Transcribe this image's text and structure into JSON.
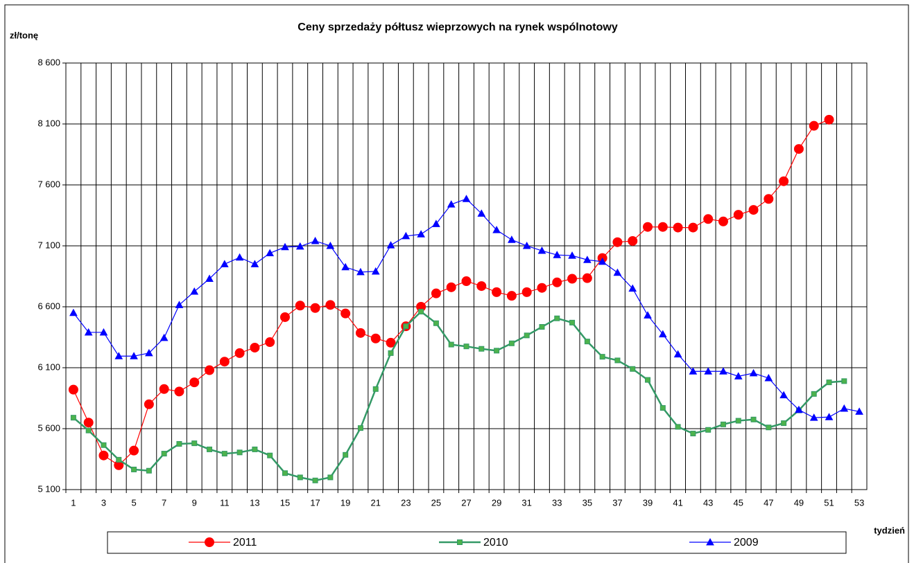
{
  "chart_data": {
    "type": "line",
    "title": "Ceny sprzedaży półtusz wieprzowych na rynek wspólnotowy",
    "y_label": "zł/tonę",
    "x_label": "tydzień",
    "categories": [
      1,
      null,
      3,
      null,
      5,
      null,
      7,
      null,
      9,
      null,
      11,
      null,
      13,
      null,
      15,
      null,
      17,
      null,
      19,
      null,
      21,
      null,
      23,
      null,
      25,
      null,
      27,
      null,
      29,
      null,
      31,
      null,
      33,
      null,
      35,
      null,
      37,
      null,
      39,
      null,
      41,
      null,
      43,
      null,
      45,
      null,
      47,
      null,
      49,
      null,
      51,
      null,
      53
    ],
    "ylim": [
      5100,
      8600
    ],
    "yticks": [
      {
        "value": 5100,
        "label": "5 100"
      },
      {
        "value": 5600,
        "label": "5 600"
      },
      {
        "value": 6100,
        "label": "6 100"
      },
      {
        "value": 6600,
        "label": "6 600"
      },
      {
        "value": 7100,
        "label": "7 100"
      },
      {
        "value": 7600,
        "label": "7 600"
      },
      {
        "value": 8100,
        "label": "8 100"
      },
      {
        "value": 8600,
        "label": "8 600"
      }
    ],
    "grid": true,
    "legend": "bottom",
    "series": [
      {
        "name": "2011",
        "color": "#ff0000",
        "marker": "circle",
        "values": [
          5920,
          5650,
          5380,
          5300,
          5420,
          5800,
          5925,
          5905,
          5980,
          6080,
          6150,
          6220,
          6265,
          6310,
          6515,
          6610,
          6590,
          6615,
          6545,
          6385,
          6340,
          6305,
          6440,
          6600,
          6710,
          6760,
          6810,
          6770,
          6720,
          6690,
          6720,
          6755,
          6800,
          6830,
          6835,
          7000,
          7130,
          7140,
          7255,
          7255,
          7250,
          7250,
          7320,
          7300,
          7355,
          7395,
          7485,
          7630,
          7895,
          8085,
          8135,
          null,
          null
        ]
      },
      {
        "name": "2010",
        "color": "#339966",
        "marker": "square",
        "values": [
          5690,
          5585,
          5465,
          5345,
          5265,
          5255,
          5395,
          5475,
          5480,
          5430,
          5395,
          5405,
          5430,
          5380,
          5235,
          5200,
          5175,
          5200,
          5385,
          5605,
          5925,
          6220,
          6440,
          6560,
          6465,
          6290,
          6275,
          6255,
          6240,
          6300,
          6365,
          6435,
          6505,
          6470,
          6315,
          6190,
          6160,
          6090,
          6000,
          5770,
          5615,
          5560,
          5590,
          5635,
          5665,
          5675,
          5610,
          5645,
          5750,
          5885,
          5980,
          5990,
          null
        ]
      },
      {
        "name": "2009",
        "color": "#0000ff",
        "marker": "triangle",
        "values": [
          6550,
          6390,
          6390,
          6195,
          6195,
          6220,
          6345,
          6615,
          6725,
          6830,
          6950,
          7005,
          6950,
          7040,
          7090,
          7095,
          7140,
          7100,
          6925,
          6885,
          6890,
          7105,
          7180,
          7195,
          7280,
          7440,
          7485,
          7365,
          7230,
          7150,
          7100,
          7060,
          7025,
          7020,
          6985,
          6970,
          6880,
          6750,
          6530,
          6375,
          6210,
          6070,
          6070,
          6070,
          6030,
          6055,
          6015,
          5875,
          5755,
          5690,
          5695,
          5765,
          5740
        ]
      }
    ]
  }
}
